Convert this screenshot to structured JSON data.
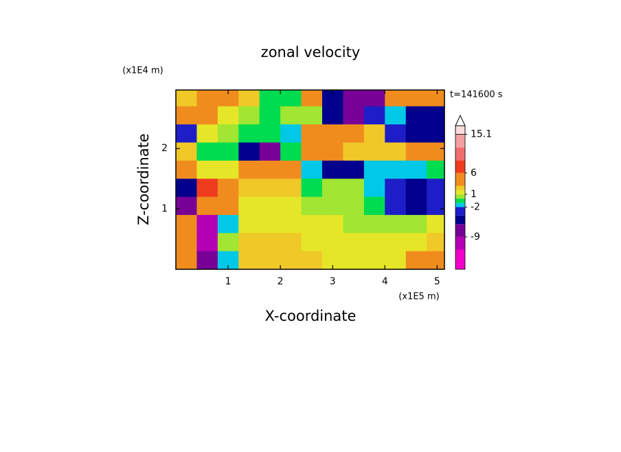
{
  "chart_data": {
    "type": "contourf",
    "title": "zonal velocity",
    "annotation": "t=141600 s",
    "x_label": "X-coordinate",
    "y_label": "Z-coordinate",
    "x_unit": "(x1E5 m)",
    "y_unit": "(x1E4 m)",
    "xlim": [
      0,
      5.14
    ],
    "ylim": [
      0,
      2.97
    ],
    "xticks": [
      1,
      2,
      3,
      4,
      5
    ],
    "yticks": [
      1,
      2
    ],
    "x": [
      0.2,
      0.6,
      1.0,
      1.4,
      1.8,
      2.2,
      2.6,
      3.0,
      3.4,
      3.8,
      4.2,
      4.6,
      5.0
    ],
    "z": [
      2.85,
      2.55,
      2.25,
      1.95,
      1.65,
      1.35,
      1.05,
      0.75,
      0.45,
      0.15
    ],
    "values": [
      [
        2,
        3,
        5,
        2,
        -1,
        -1,
        3,
        -5,
        -8,
        -8,
        3,
        3,
        3
      ],
      [
        3,
        5,
        1,
        0,
        -1,
        0,
        0,
        -6,
        -8,
        -4,
        -2,
        -6,
        -6
      ],
      [
        -3,
        1,
        0,
        -1,
        -1,
        -2,
        5,
        5,
        4,
        2,
        -4,
        -5,
        -5
      ],
      [
        2,
        -1,
        -1,
        -6,
        -8,
        -1,
        3,
        3,
        2,
        2,
        2,
        3,
        4
      ],
      [
        4,
        1,
        1,
        5,
        5,
        4,
        -2,
        -5,
        -5,
        -2,
        -2,
        -2,
        -1
      ],
      [
        -6,
        6,
        4,
        2,
        2,
        2,
        -1,
        0,
        0,
        -2,
        -3,
        -5,
        -4
      ],
      [
        -9,
        5,
        3,
        1,
        1,
        1,
        0,
        0,
        0,
        -1,
        -4,
        -5,
        -3
      ],
      [
        4,
        -10,
        -2,
        1,
        1,
        1,
        1,
        1,
        0,
        0,
        0,
        0,
        1
      ],
      [
        5,
        -10,
        0,
        2,
        2,
        2,
        1,
        1,
        1,
        1,
        1,
        1,
        2
      ],
      [
        3,
        -8,
        -2,
        2,
        2,
        2,
        2,
        1,
        1,
        1,
        1,
        3,
        4
      ]
    ],
    "colorbar": {
      "bounds": [
        -16.6,
        -12,
        -9,
        -6,
        -4,
        -2,
        -1,
        0,
        1,
        2,
        3,
        6,
        9,
        12,
        15.1,
        17.1
      ],
      "colors": [
        "#f000c8",
        "#b400b4",
        "#780096",
        "#00008c",
        "#1e1ec8",
        "#00c8e6",
        "#00dc50",
        "#a0e632",
        "#e6e628",
        "#f0c828",
        "#f08c1e",
        "#f03c1e",
        "#f06e6e",
        "#f0a0a0",
        "#fadcdc"
      ],
      "ticks": [
        15.1,
        6,
        1,
        -2,
        -9
      ]
    }
  }
}
